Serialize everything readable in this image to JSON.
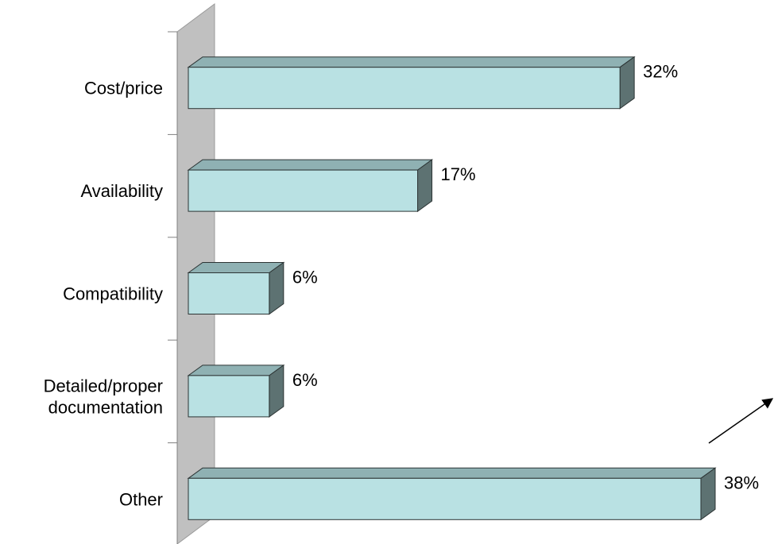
{
  "chart_data": {
    "type": "bar",
    "orientation": "horizontal",
    "style": "3d",
    "categories": [
      "Cost/price",
      "Availability",
      "Compatibility",
      "Detailed/proper documentation",
      "Other"
    ],
    "category_lines": [
      [
        "Cost/price"
      ],
      [
        "Availability"
      ],
      [
        "Compatibility"
      ],
      [
        "Detailed/proper",
        "documentation"
      ],
      [
        "Other"
      ]
    ],
    "values": [
      32,
      17,
      6,
      6,
      38
    ],
    "value_labels": [
      "32%",
      "17%",
      "6%",
      "6%",
      "38%"
    ],
    "xlim": [
      0,
      38
    ],
    "grid": false,
    "legend": "none",
    "title": "",
    "xlabel": "",
    "ylabel": ""
  },
  "colors": {
    "bar_front": "#b9e1e3",
    "bar_top": "#8fb1b3",
    "bar_side": "#5d7272",
    "bar_outline": "#2c3434",
    "wall": "#c0c0c0",
    "wall_outline": "#9a9a9a",
    "axis": "#808080",
    "arrow": "#000000"
  }
}
